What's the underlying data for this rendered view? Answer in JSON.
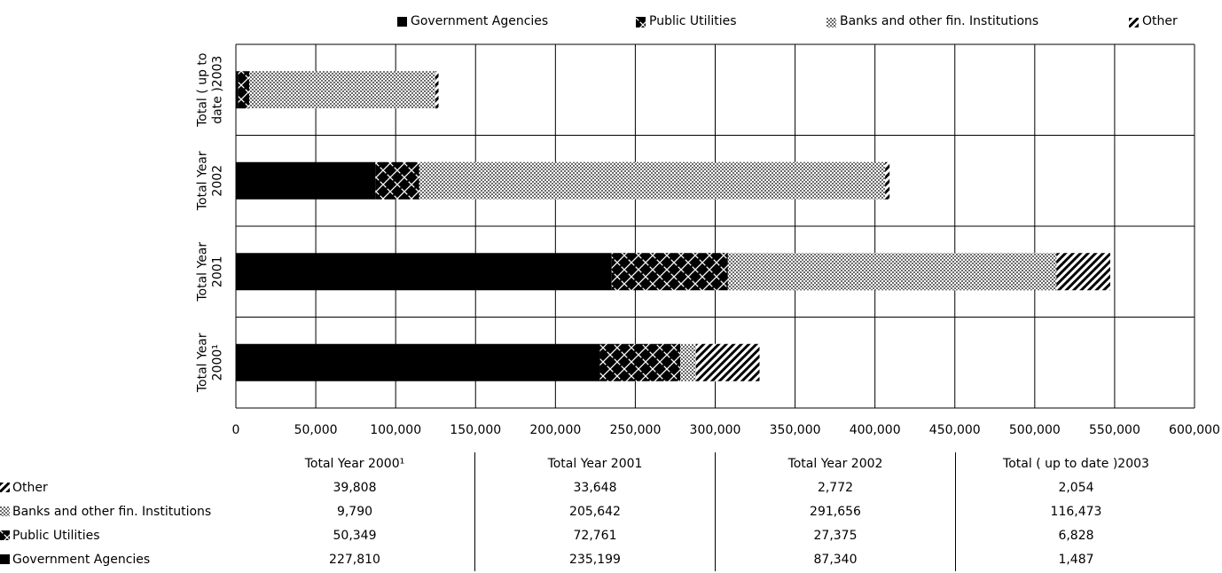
{
  "legend": {
    "items": [
      {
        "label": "Government Agencies",
        "icon": "solid-black-square"
      },
      {
        "label": "Public Utilities",
        "icon": "crosshatch-square"
      },
      {
        "label": "Banks and other fin. Institutions",
        "icon": "dotted-square"
      },
      {
        "label": "Other",
        "icon": "diagonal-stripe-square"
      }
    ]
  },
  "table": {
    "columns": [
      "Total Year 2000¹",
      "Total Year 2001",
      "Total Year 2002",
      "Total ( up to date )2003"
    ],
    "rows": [
      {
        "label": "Other",
        "values": [
          "39,808",
          "33,648",
          "2,772",
          "2,054"
        ]
      },
      {
        "label": "Banks and other fin. Institutions",
        "values": [
          "9,790",
          "205,642",
          "291,656",
          "116,473"
        ]
      },
      {
        "label": "Public Utilities",
        "values": [
          "50,349",
          "72,761",
          "27,375",
          "6,828"
        ]
      },
      {
        "label": "Government Agencies",
        "values": [
          "227,810",
          "235,199",
          "87,340",
          "1,487"
        ]
      }
    ]
  },
  "chart_data": {
    "type": "bar",
    "orientation": "horizontal",
    "stacked": true,
    "categories": [
      "Total ( up to date )2003",
      "Total Year 2002",
      "Total Year 2001",
      "Total Year 2000¹"
    ],
    "series": [
      {
        "name": "Government Agencies",
        "values": [
          1487,
          87340,
          235199,
          227810
        ]
      },
      {
        "name": "Public Utilities",
        "values": [
          6828,
          27375,
          72761,
          50349
        ]
      },
      {
        "name": "Banks and other fin. Institutions",
        "values": [
          116473,
          291656,
          205642,
          9790
        ]
      },
      {
        "name": "Other",
        "values": [
          2054,
          2772,
          33648,
          39808
        ]
      }
    ],
    "xlim": [
      0,
      600000
    ],
    "xticks": [
      "0",
      "50,000",
      "100,000",
      "150,000",
      "200,000",
      "250,000",
      "300,000",
      "350,000",
      "400,000",
      "450,000",
      "500,000",
      "550,000",
      "600,000"
    ],
    "grid": true,
    "legend_position": "top"
  },
  "colors": {
    "gov": "#000000",
    "pu": "#000000",
    "bank": "#000000",
    "other": "#000000"
  }
}
